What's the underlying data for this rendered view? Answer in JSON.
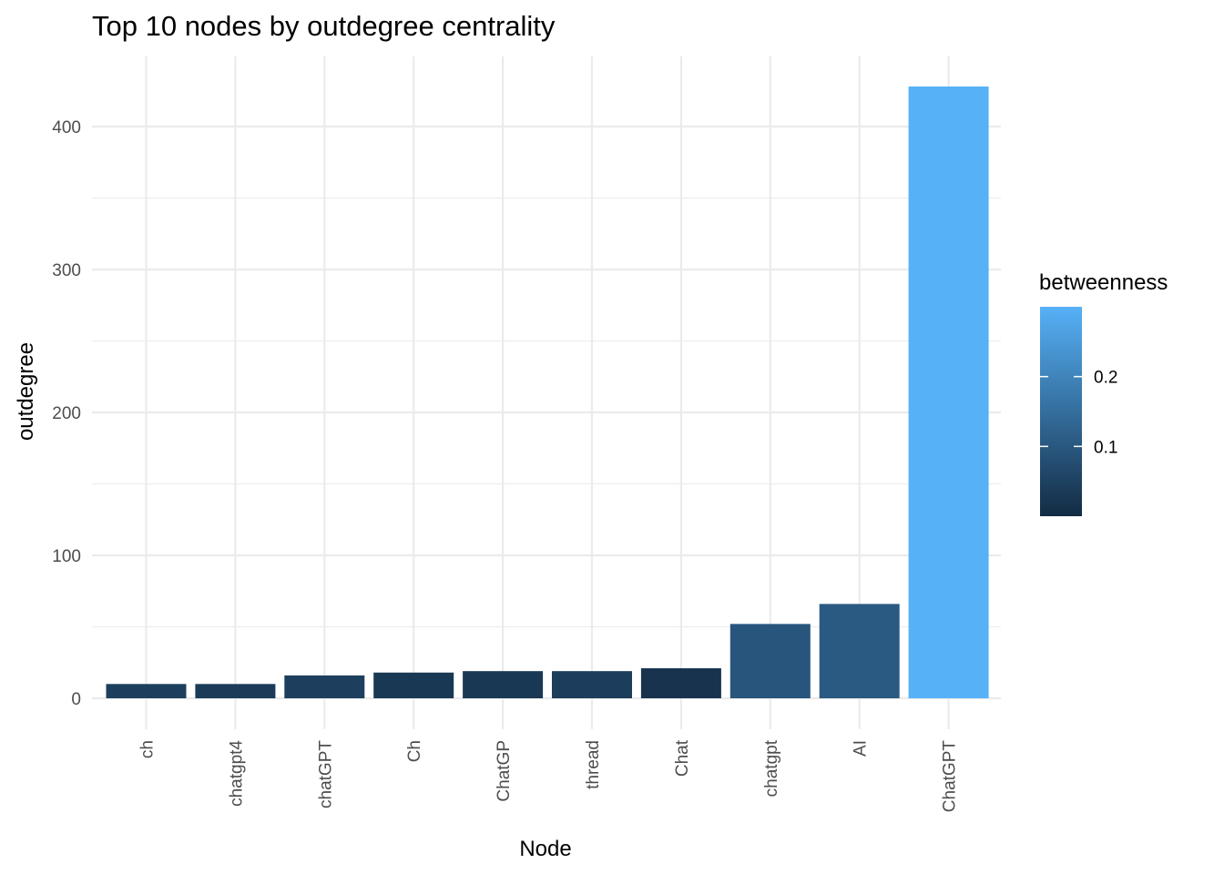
{
  "chart_data": {
    "type": "bar",
    "title": "Top 10 nodes by outdegree centrality",
    "xlabel": "Node",
    "ylabel": "outdegree",
    "categories": [
      "ch",
      "chatgpt4",
      "chatGPT",
      "Ch",
      "ChatGP",
      "thread",
      "Chat",
      "chatgpt",
      "AI",
      "ChatGPT"
    ],
    "values": [
      10,
      10,
      16,
      18,
      19,
      19,
      21,
      52,
      66,
      428
    ],
    "fill_values": [
      0.044,
      0.036,
      0.044,
      0.028,
      0.028,
      0.04,
      0.018,
      0.095,
      0.105,
      0.3
    ],
    "ylim": [
      0,
      440
    ],
    "yticks": [
      0,
      100,
      200,
      300,
      400
    ],
    "grid": true,
    "legend": {
      "title": "betweenness",
      "position": "right",
      "ticks": [
        0.1,
        0.2
      ],
      "range": [
        0.0,
        0.3
      ],
      "color_low": "#132B43",
      "color_high": "#56B1F7"
    }
  }
}
